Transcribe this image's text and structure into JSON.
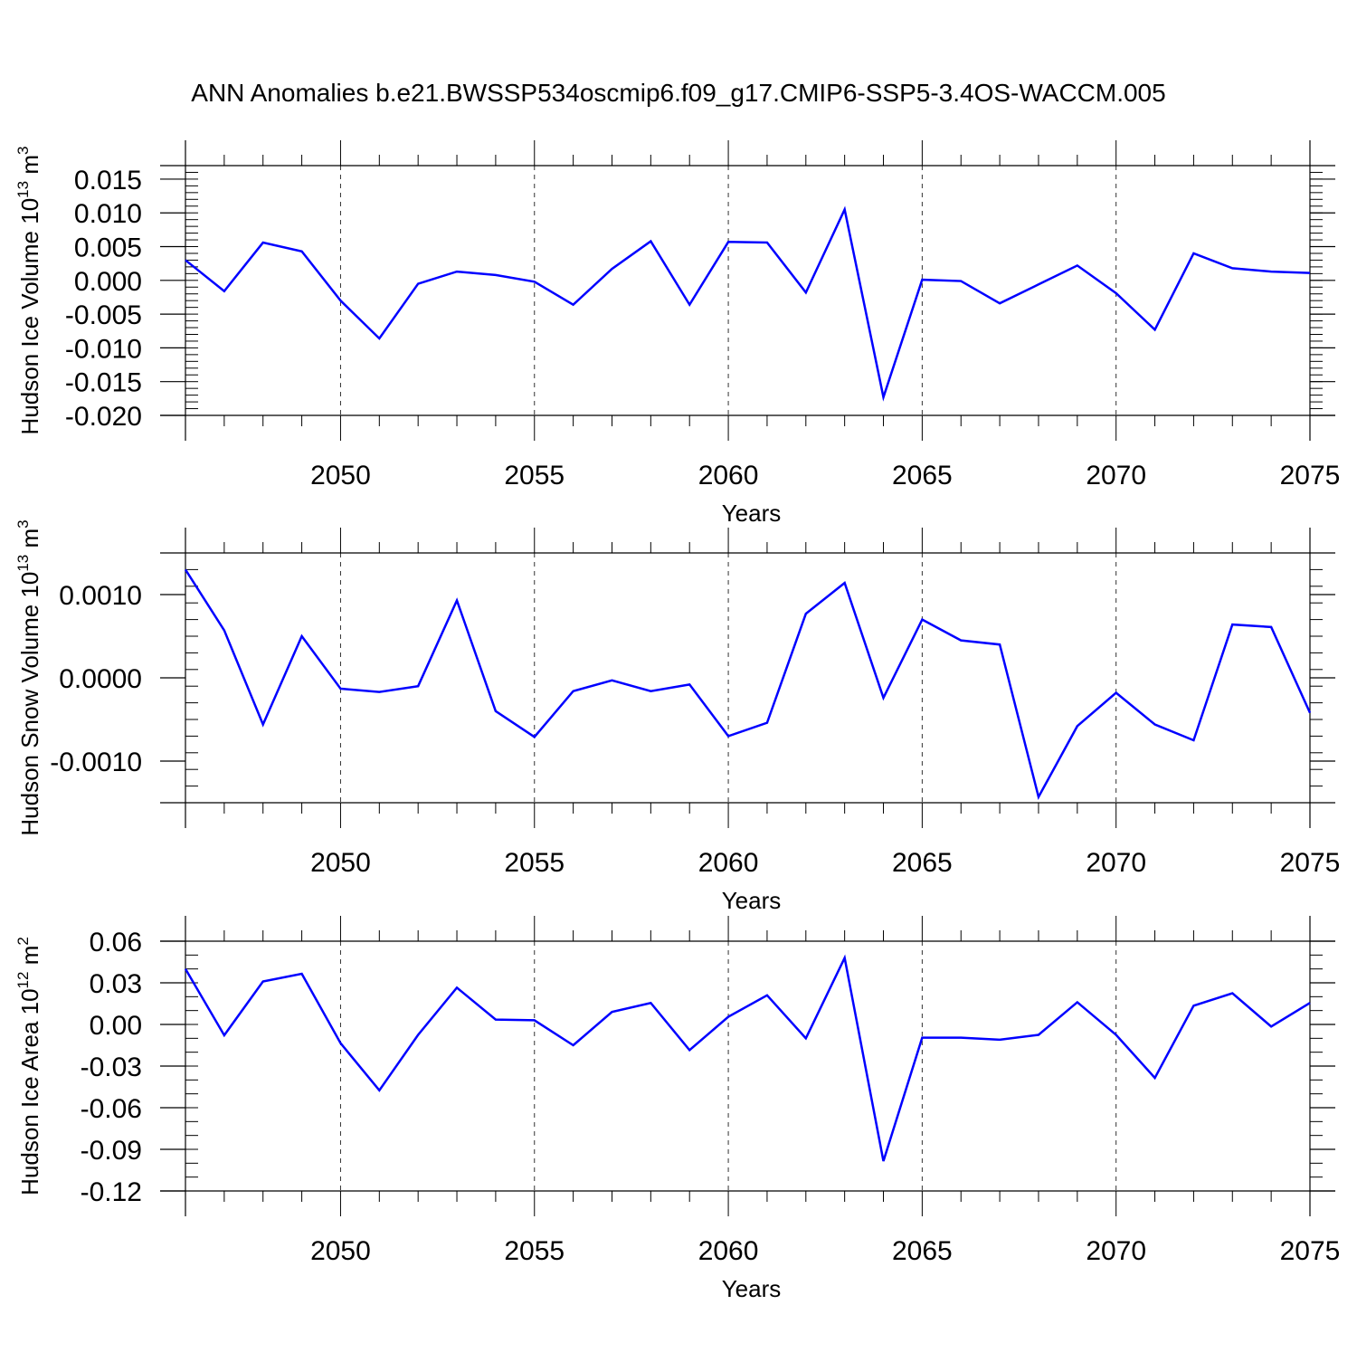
{
  "title": "ANN Anomalies b.e21.BWSSP534oscmip6.f09_g17.CMIP6-SSP5-3.4OS-WACCM.005",
  "colors": {
    "line": "#0000ff",
    "axis": "#000000",
    "grid": "#000000"
  },
  "chart_data": [
    {
      "type": "line",
      "name": "hudson-ice-volume",
      "ylabel": "Hudson Ice Volume 10",
      "ylabel_sup": "13",
      "ylabel_unit": "m",
      "ylabel_unit_sup": "3",
      "xlabel": "Years",
      "xlim": [
        2046,
        2075
      ],
      "ylim": [
        -0.02,
        0.017
      ],
      "yticks": [
        -0.02,
        -0.015,
        -0.01,
        -0.005,
        0.0,
        0.005,
        0.01,
        0.015
      ],
      "ytick_labels": [
        "-0.020",
        "-0.015",
        "-0.010",
        "-0.005",
        "0.000",
        "0.005",
        "0.010",
        "0.015"
      ],
      "yminor_step": 0.001,
      "xticks": [
        2050,
        2055,
        2060,
        2065,
        2070,
        2075
      ],
      "xtick_labels": [
        "2050",
        "2055",
        "2060",
        "2065",
        "2070",
        "2075"
      ],
      "x": [
        2046,
        2047,
        2048,
        2049,
        2050,
        2051,
        2052,
        2053,
        2054,
        2055,
        2056,
        2057,
        2058,
        2059,
        2060,
        2061,
        2062,
        2063,
        2064,
        2065,
        2066,
        2067,
        2068,
        2069,
        2070,
        2071,
        2072,
        2073,
        2074,
        2075
      ],
      "series": [
        {
          "name": "Hudson Ice Volume",
          "values": [
            0.003,
            -0.0016,
            0.0056,
            0.0043,
            -0.003,
            -0.0086,
            -0.0005,
            0.0013,
            0.0008,
            -0.0002,
            -0.0036,
            0.0017,
            0.0058,
            -0.0036,
            0.0057,
            0.0056,
            -0.0018,
            0.0105,
            -0.0173,
            0.0001,
            -0.0001,
            -0.0034,
            -0.0006,
            0.0022,
            -0.0019,
            -0.0073,
            0.004,
            0.0018,
            0.0013,
            0.0011
          ]
        }
      ]
    },
    {
      "type": "line",
      "name": "hudson-snow-volume",
      "ylabel": "Hudson Snow Volume 10",
      "ylabel_sup": "13",
      "ylabel_unit": "m",
      "ylabel_unit_sup": "3",
      "xlabel": "Years",
      "xlim": [
        2046,
        2075
      ],
      "ylim": [
        -0.0015,
        0.0015
      ],
      "yticks": [
        -0.001,
        0.0,
        0.001
      ],
      "ytick_labels": [
        "-0.0010",
        "0.0000",
        "0.0010"
      ],
      "yminor_step": 0.0002,
      "xticks": [
        2050,
        2055,
        2060,
        2065,
        2070,
        2075
      ],
      "xtick_labels": [
        "2050",
        "2055",
        "2060",
        "2065",
        "2070",
        "2075"
      ],
      "x": [
        2046,
        2047,
        2048,
        2049,
        2050,
        2051,
        2052,
        2053,
        2054,
        2055,
        2056,
        2057,
        2058,
        2059,
        2060,
        2061,
        2062,
        2063,
        2064,
        2065,
        2066,
        2067,
        2068,
        2069,
        2070,
        2071,
        2072,
        2073,
        2074,
        2075
      ],
      "series": [
        {
          "name": "Hudson Snow Volume",
          "values": [
            0.0013,
            0.00057,
            -0.00056,
            0.0005,
            -0.00013,
            -0.00017,
            -0.0001,
            0.00093,
            -0.0004,
            -0.00071,
            -0.00016,
            -3e-05,
            -0.00016,
            -8e-05,
            -0.0007,
            -0.00054,
            0.00077,
            0.00114,
            -0.00024,
            0.0007,
            0.00045,
            0.0004,
            -0.00143,
            -0.00058,
            -0.00018,
            -0.00056,
            -0.00075,
            0.00064,
            0.00061,
            -0.00042
          ]
        }
      ]
    },
    {
      "type": "line",
      "name": "hudson-ice-area",
      "ylabel": "Hudson Ice Area 10",
      "ylabel_sup": "12",
      "ylabel_unit": "m",
      "ylabel_unit_sup": "2",
      "xlabel": "Years",
      "xlim": [
        2046,
        2075
      ],
      "ylim": [
        -0.12,
        0.06
      ],
      "yticks": [
        -0.12,
        -0.09,
        -0.06,
        -0.03,
        0.0,
        0.03,
        0.06
      ],
      "ytick_labels": [
        "-0.12",
        "-0.09",
        "-0.06",
        "-0.03",
        "0.00",
        "0.03",
        "0.06"
      ],
      "yminor_step": 0.01,
      "xticks": [
        2050,
        2055,
        2060,
        2065,
        2070,
        2075
      ],
      "xtick_labels": [
        "2050",
        "2055",
        "2060",
        "2065",
        "2070",
        "2075"
      ],
      "x": [
        2046,
        2047,
        2048,
        2049,
        2050,
        2051,
        2052,
        2053,
        2054,
        2055,
        2056,
        2057,
        2058,
        2059,
        2060,
        2061,
        2062,
        2063,
        2064,
        2065,
        2066,
        2067,
        2068,
        2069,
        2070,
        2071,
        2072,
        2073,
        2074,
        2075
      ],
      "series": [
        {
          "name": "Hudson Ice Area",
          "values": [
            0.04,
            -0.0078,
            0.031,
            0.0365,
            -0.0135,
            -0.0475,
            -0.0075,
            0.0265,
            0.0035,
            0.003,
            -0.015,
            0.009,
            0.0155,
            -0.0185,
            0.0055,
            0.021,
            -0.01,
            0.048,
            -0.0985,
            -0.0095,
            -0.0095,
            -0.011,
            -0.0075,
            0.016,
            -0.0075,
            -0.0385,
            0.0135,
            0.0225,
            -0.0015,
            0.0155
          ]
        }
      ]
    }
  ]
}
